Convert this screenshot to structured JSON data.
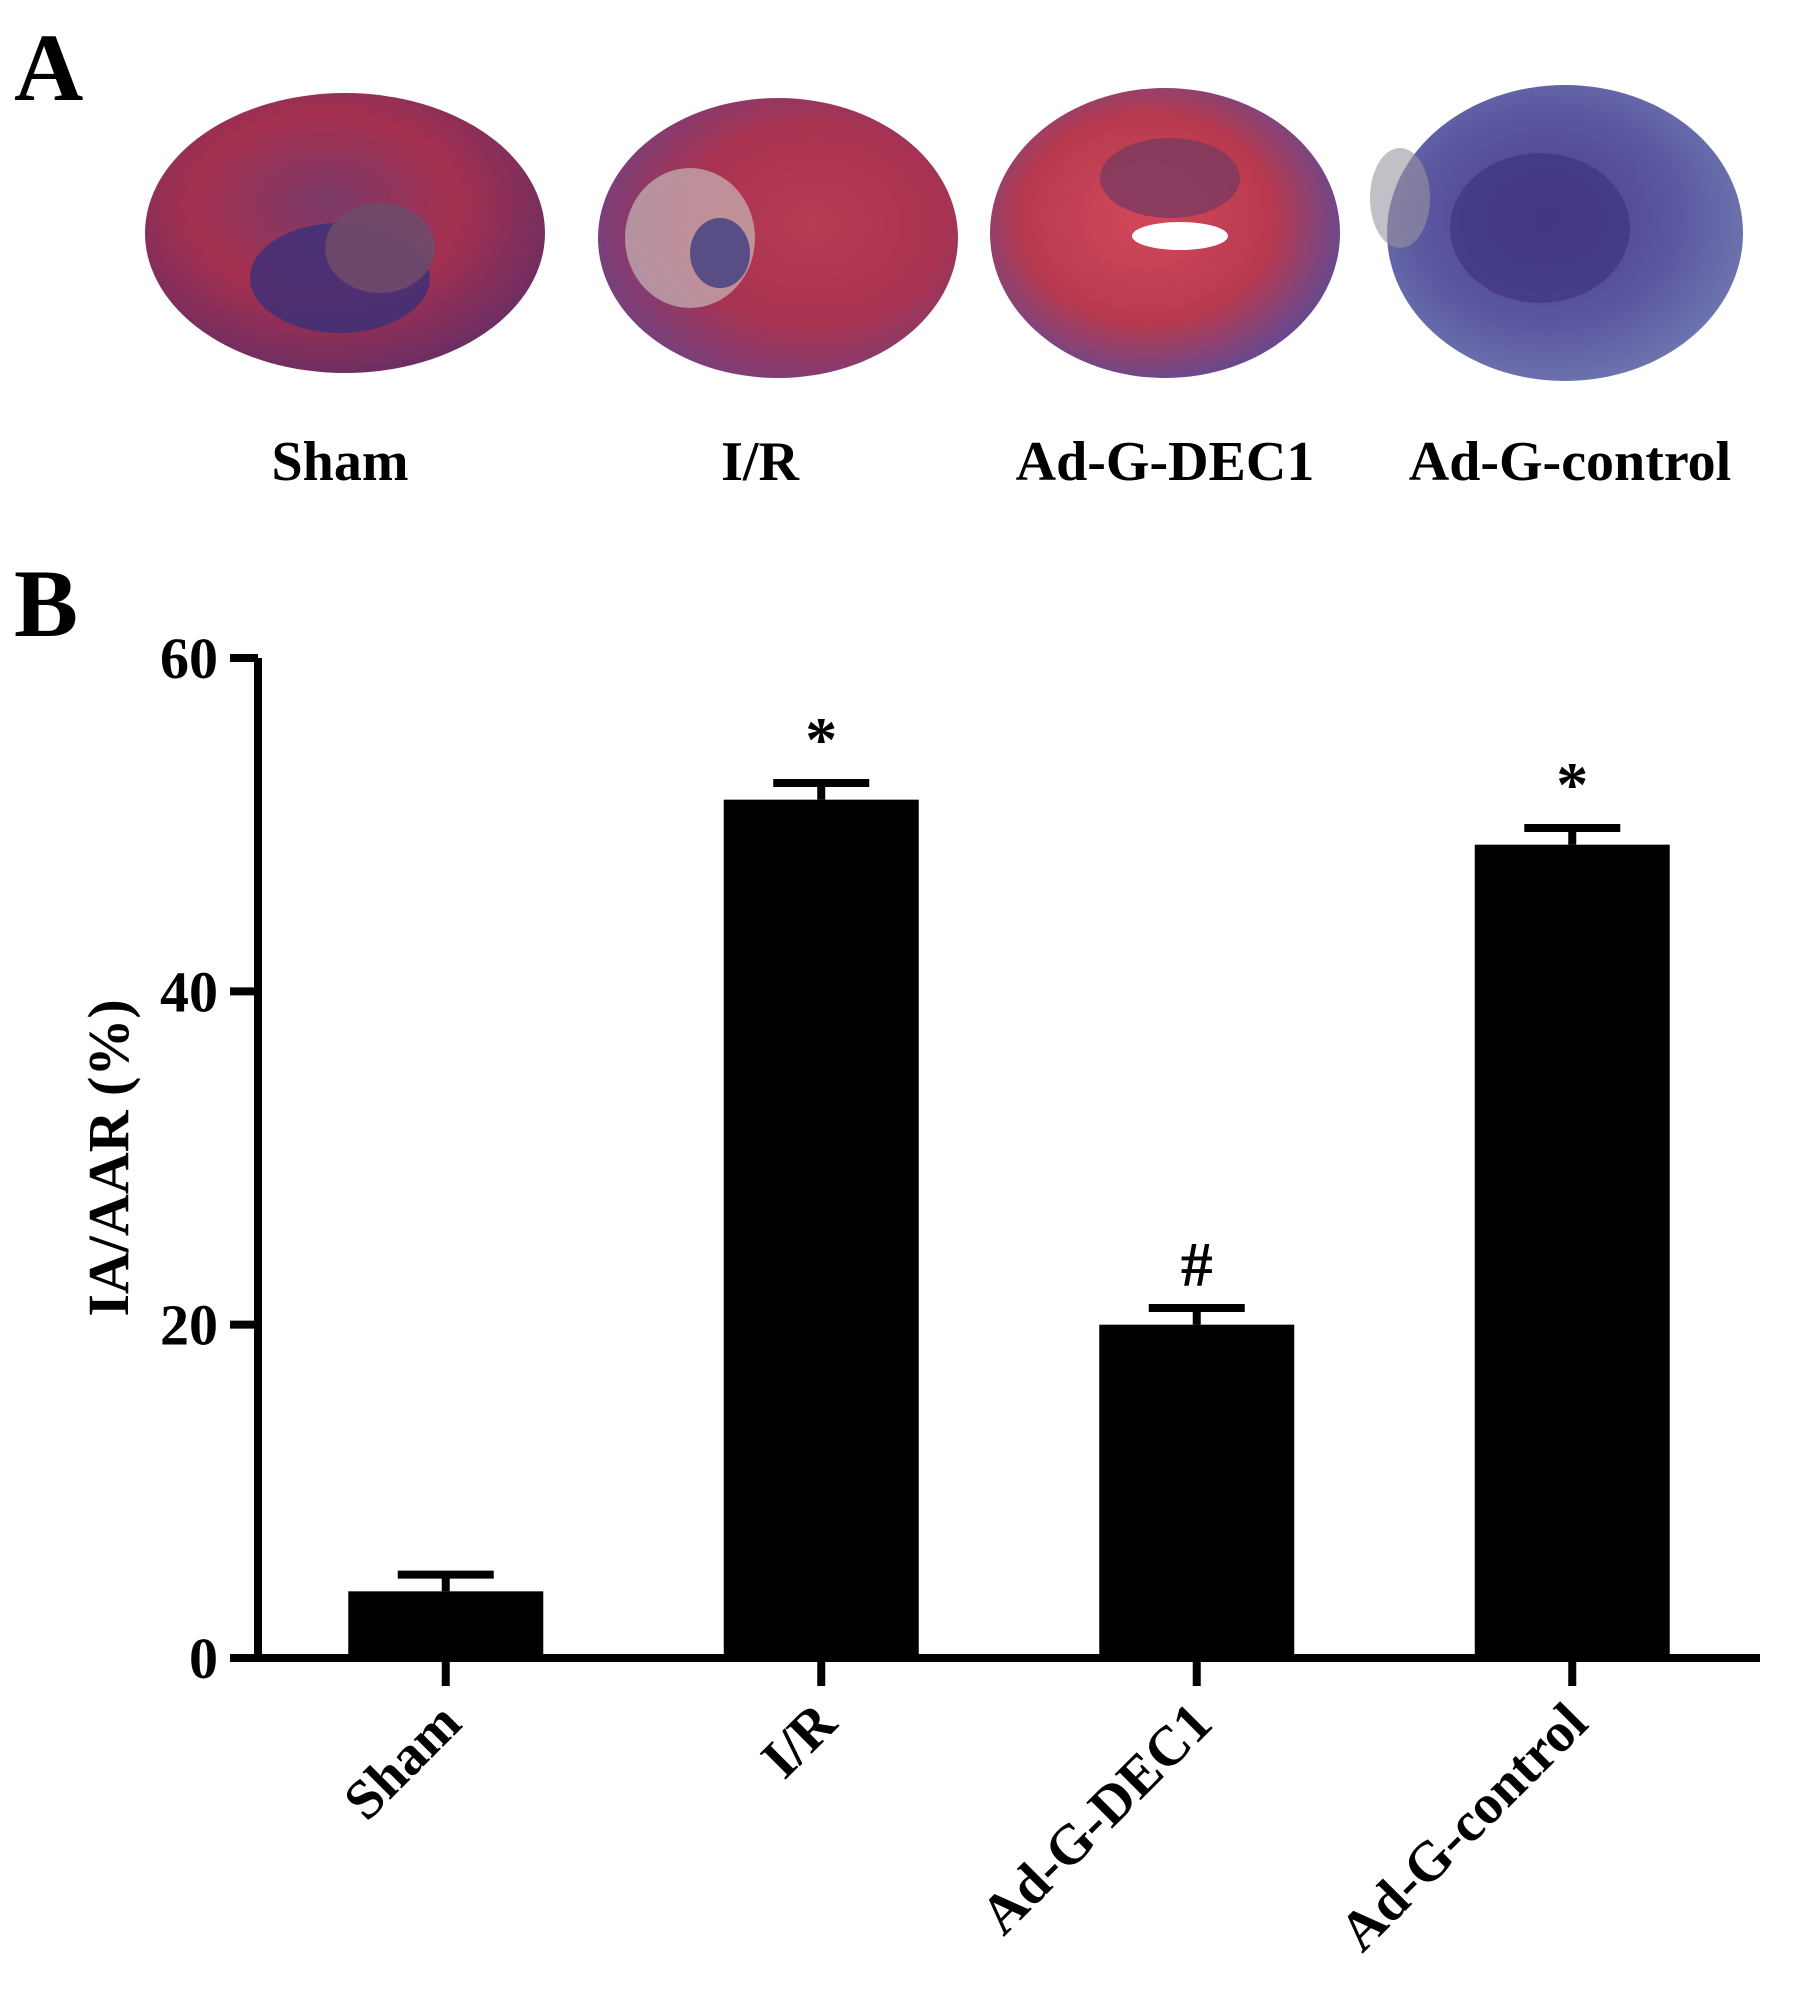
{
  "panels": {
    "a_label": "A",
    "b_label": "B"
  },
  "panel_a": {
    "images": [
      {
        "label": "Sham"
      },
      {
        "label": "I/R"
      },
      {
        "label": "Ad-G-DEC1"
      },
      {
        "label": "Ad-G-control"
      }
    ]
  },
  "chart_data": {
    "type": "bar",
    "categories": [
      "Sham",
      "I/R",
      "Ad-G-DEC1",
      "Ad-G-control"
    ],
    "values": [
      4,
      51.5,
      20,
      48.8
    ],
    "errors": [
      1,
      1,
      1,
      1
    ],
    "annotations": [
      "",
      "*",
      "#",
      "*"
    ],
    "ylabel": "IA/AAR (%)",
    "xlabel": "",
    "title": "",
    "ylim": [
      0,
      60
    ],
    "yticks": [
      0,
      20,
      40,
      60
    ],
    "bar_color": "#000000",
    "grid": false
  }
}
